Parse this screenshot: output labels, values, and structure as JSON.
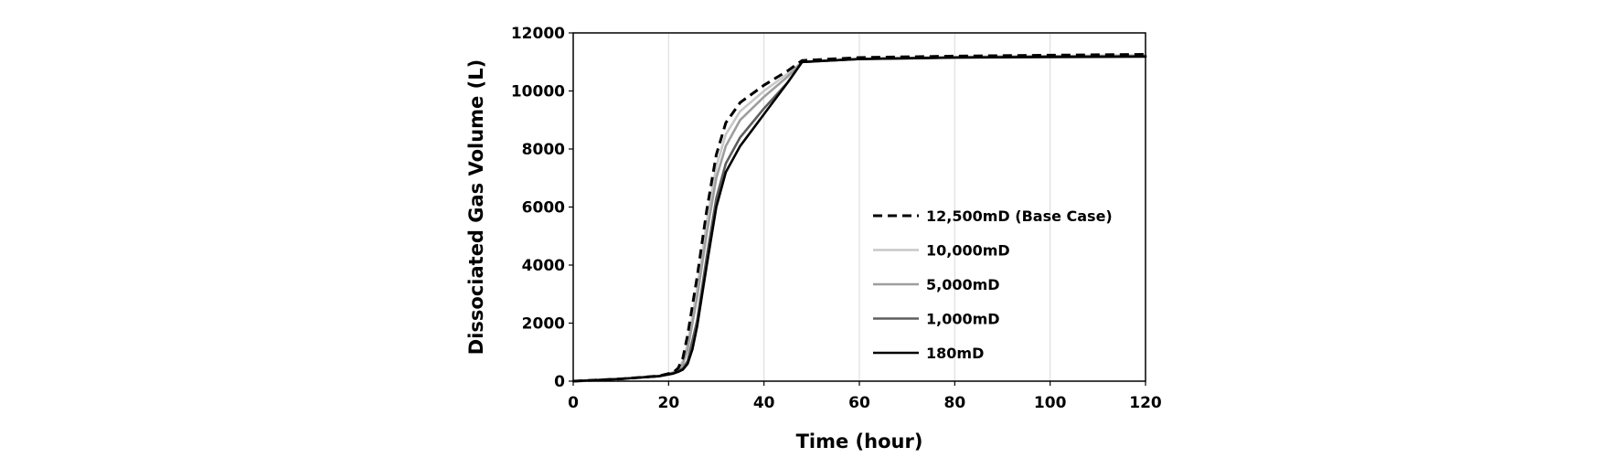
{
  "chart_data": {
    "type": "line",
    "title": "",
    "xlabel": "Time (hour)",
    "ylabel": "Dissociated Gas Volume (L)",
    "xlim": [
      0,
      120
    ],
    "ylim": [
      0,
      12000
    ],
    "xticks": [
      0,
      20,
      40,
      60,
      80,
      100,
      120
    ],
    "yticks": [
      0,
      2000,
      4000,
      6000,
      8000,
      10000,
      12000
    ],
    "xtick_labels": [
      "0",
      "20",
      "40",
      "60",
      "80",
      "100",
      "120"
    ],
    "ytick_labels": [
      "0",
      "2000",
      "4000",
      "6000",
      "8000",
      "10000",
      "12000"
    ],
    "grid": "vertical",
    "legend_position": "right-middle",
    "series": [
      {
        "name": "12,500mD (Base Case)",
        "color": "#000000",
        "dash": "dashed",
        "x": [
          0,
          10,
          18,
          21,
          22,
          23,
          24,
          26,
          28,
          30,
          32,
          35,
          40,
          45,
          48,
          60,
          80,
          100,
          120
        ],
        "y": [
          0,
          80,
          180,
          300,
          450,
          800,
          1600,
          3600,
          5900,
          7800,
          8900,
          9600,
          10200,
          10700,
          11050,
          11150,
          11200,
          11230,
          11260
        ]
      },
      {
        "name": "10,000mD",
        "color": "#c8c8c8",
        "dash": "solid",
        "x": [
          0,
          10,
          18,
          21,
          22,
          23,
          24,
          26,
          28,
          30,
          32,
          35,
          40,
          45,
          48,
          60,
          80,
          100,
          120
        ],
        "y": [
          0,
          80,
          180,
          300,
          420,
          700,
          1300,
          3200,
          5500,
          7400,
          8500,
          9300,
          10000,
          10600,
          11000,
          11100,
          11170,
          11200,
          11220
        ]
      },
      {
        "name": "5,000mD",
        "color": "#9e9e9e",
        "dash": "solid",
        "x": [
          0,
          10,
          18,
          21,
          22,
          23,
          24,
          26,
          28,
          30,
          32,
          35,
          40,
          45,
          48,
          60,
          80,
          100,
          120
        ],
        "y": [
          0,
          80,
          180,
          300,
          400,
          600,
          1100,
          2900,
          5100,
          7000,
          8100,
          9000,
          9800,
          10500,
          11000,
          11100,
          11170,
          11200,
          11220
        ]
      },
      {
        "name": "1,000mD",
        "color": "#5e5e5e",
        "dash": "solid",
        "x": [
          0,
          10,
          18,
          21,
          22,
          23,
          24,
          26,
          28,
          30,
          32,
          35,
          40,
          45,
          48,
          60,
          80,
          100,
          120
        ],
        "y": [
          0,
          80,
          170,
          280,
          350,
          450,
          700,
          2100,
          4300,
          6300,
          7500,
          8400,
          9400,
          10300,
          11000,
          11100,
          11150,
          11180,
          11200
        ]
      },
      {
        "name": "180mD",
        "color": "#000000",
        "dash": "solid",
        "x": [
          0,
          10,
          18,
          21,
          22,
          23,
          24,
          25,
          26,
          28,
          30,
          32,
          35,
          40,
          45,
          48,
          60,
          80,
          100,
          120
        ],
        "y": [
          0,
          80,
          170,
          260,
          320,
          400,
          600,
          1100,
          1900,
          4000,
          6000,
          7200,
          8100,
          9200,
          10300,
          11000,
          11100,
          11150,
          11170,
          11180
        ]
      }
    ]
  }
}
